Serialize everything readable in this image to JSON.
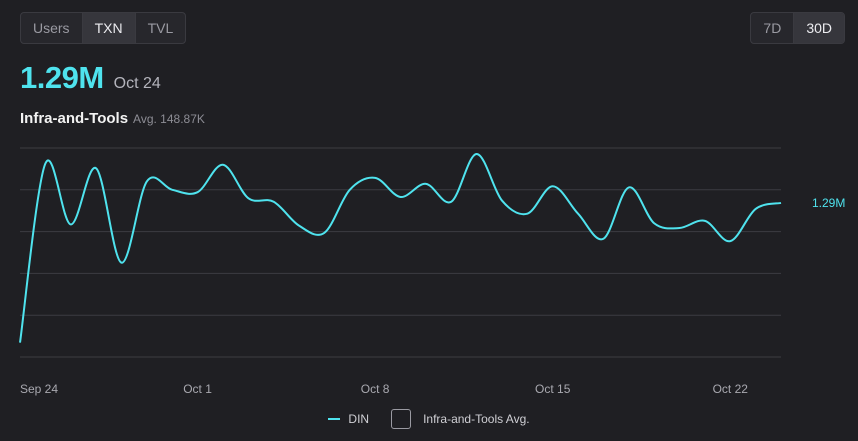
{
  "metric_tabs": [
    {
      "label": "Users",
      "active": false
    },
    {
      "label": "TXN",
      "active": true
    },
    {
      "label": "TVL",
      "active": false
    }
  ],
  "range_tabs": [
    {
      "label": "7D",
      "active": false
    },
    {
      "label": "30D",
      "active": true
    }
  ],
  "headline": {
    "value": "1.29M",
    "date": "Oct 24"
  },
  "category": {
    "name": "Infra-and-Tools",
    "avg": "Avg. 148.87K"
  },
  "legend": {
    "series_label": "DIN",
    "avg_label": "Infra-and-Tools Avg."
  },
  "colors": {
    "accent": "#4fe3ee",
    "grid": "#3c3c42",
    "background": "#1f1f23"
  },
  "chart_data": {
    "type": "line",
    "x_ticks": [
      "Sep 24",
      "Oct 1",
      "Oct 8",
      "Oct 15",
      "Oct 22"
    ],
    "end_label": "1.29M",
    "grid": true,
    "ylim": [
      0,
      1.75
    ],
    "series": [
      {
        "name": "DIN",
        "x": [
          "Sep 24",
          "Sep 25",
          "Sep 26",
          "Sep 27",
          "Sep 28",
          "Sep 29",
          "Sep 30",
          "Oct 1",
          "Oct 2",
          "Oct 3",
          "Oct 4",
          "Oct 5",
          "Oct 6",
          "Oct 7",
          "Oct 8",
          "Oct 9",
          "Oct 10",
          "Oct 11",
          "Oct 12",
          "Oct 13",
          "Oct 14",
          "Oct 15",
          "Oct 16",
          "Oct 17",
          "Oct 18",
          "Oct 19",
          "Oct 20",
          "Oct 21",
          "Oct 22",
          "Oct 23",
          "Oct 24"
        ],
        "values": [
          0.12,
          1.62,
          1.11,
          1.58,
          0.79,
          1.47,
          1.4,
          1.38,
          1.61,
          1.33,
          1.3,
          1.1,
          1.04,
          1.4,
          1.5,
          1.34,
          1.45,
          1.3,
          1.7,
          1.31,
          1.2,
          1.43,
          1.2,
          0.99,
          1.42,
          1.12,
          1.08,
          1.14,
          0.97,
          1.24,
          1.29
        ]
      }
    ]
  }
}
